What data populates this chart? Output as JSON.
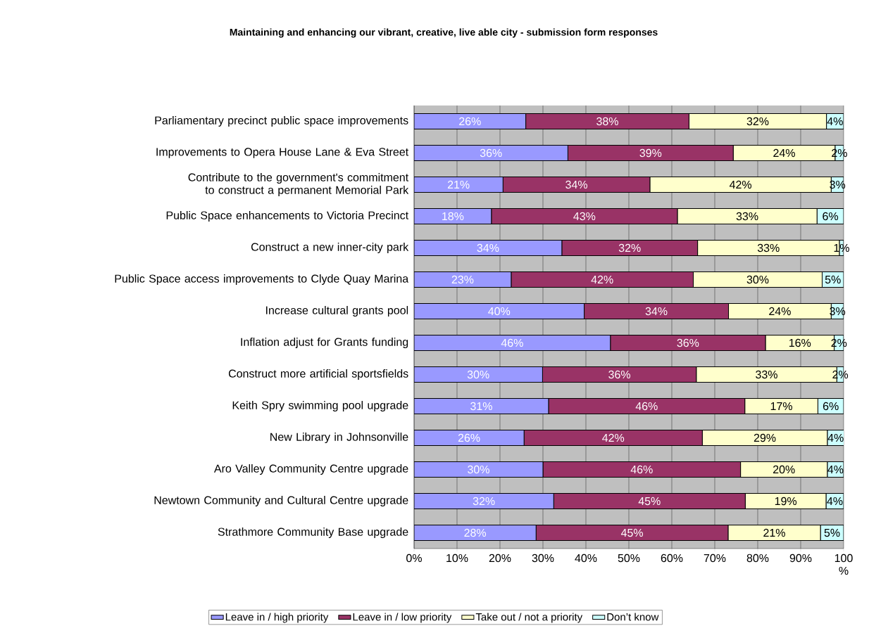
{
  "chart_data": {
    "type": "bar",
    "orientation": "horizontal",
    "stacked": true,
    "title": "Maintaining and enhancing our vibrant, creative, live able city - submission form responses",
    "categories": [
      "Parliamentary precinct public space improvements",
      "Improvements to Opera House Lane & Eva Street",
      "Contribute to the government's commitment to construct a permanent Memorial Park",
      "Public Space enhancements to Victoria Precinct",
      "Construct a new inner-city park",
      "Public Space access improvements to Clyde Quay Marina",
      "Increase cultural grants pool",
      "Inflation adjust for Grants funding",
      "Construct more artificial sportsfields",
      "Keith Spry swimming pool upgrade",
      "New Library in Johnsonville",
      "Aro Valley Community Centre upgrade",
      "Newtown Community and Cultural Centre upgrade",
      "Strathmore Community Base upgrade"
    ],
    "series": [
      {
        "name": "Leave in / high priority",
        "color": "#9999ff",
        "values": [
          26,
          35.8,
          20.7,
          18,
          34.4,
          22.6,
          39.6,
          45.7,
          29.9,
          31.3,
          25.6,
          30,
          32.5,
          28.4
        ],
        "value_labels": [
          "26%",
          "36%",
          "21%",
          "18%",
          "34%",
          "23%",
          "40%",
          "46%",
          "30%",
          "31%",
          "26%",
          "30%",
          "32%",
          "28%"
        ]
      },
      {
        "name": "Leave in / low priority",
        "color": "#993366",
        "values": [
          38,
          38.5,
          34.2,
          43.3,
          31.6,
          42.4,
          33.6,
          36.1,
          35.8,
          45.7,
          41.5,
          46,
          44.6,
          44.7
        ],
        "value_labels": [
          "38%",
          "39%",
          "34%",
          "43%",
          "32%",
          "42%",
          "34%",
          "36%",
          "36%",
          "46%",
          "42%",
          "46%",
          "45%",
          "45%"
        ]
      },
      {
        "name": "Take out / not a priority",
        "color": "#ffffcc",
        "values": [
          32,
          23.7,
          42.2,
          32.5,
          33,
          30,
          23.9,
          16,
          32.7,
          17,
          29.1,
          20.2,
          18.8,
          21.5
        ],
        "value_labels": [
          "32%",
          "24%",
          "42%",
          "33%",
          "33%",
          "30%",
          "24%",
          "16%",
          "33%",
          "17%",
          "29%",
          "20%",
          "19%",
          "21%"
        ]
      },
      {
        "name": "Don’t know",
        "color": "#ccffff",
        "values": [
          4,
          2,
          2.9,
          6.2,
          1,
          5,
          2.9,
          2.2,
          1.6,
          6,
          3.9,
          3.8,
          4.1,
          5.4
        ],
        "value_labels": [
          "4%",
          "2%",
          "3%",
          "6%",
          "1%",
          "5%",
          "3%",
          "2%",
          "2%",
          "6%",
          "4%",
          "4%",
          "4%",
          "5%"
        ]
      }
    ],
    "xlim": [
      0,
      100
    ],
    "xticks": [
      {
        "value": 0,
        "label": "0%"
      },
      {
        "value": 10,
        "label": "10%"
      },
      {
        "value": 20,
        "label": "20%"
      },
      {
        "value": 30,
        "label": "30%"
      },
      {
        "value": 40,
        "label": "40%"
      },
      {
        "value": 50,
        "label": "50%"
      },
      {
        "value": 60,
        "label": "60%"
      },
      {
        "value": 70,
        "label": "70%"
      },
      {
        "value": 80,
        "label": "80%"
      },
      {
        "value": 90,
        "label": "90%"
      },
      {
        "value": 100,
        "label": "100 %"
      }
    ],
    "grid": "x",
    "legend": "bottom"
  }
}
